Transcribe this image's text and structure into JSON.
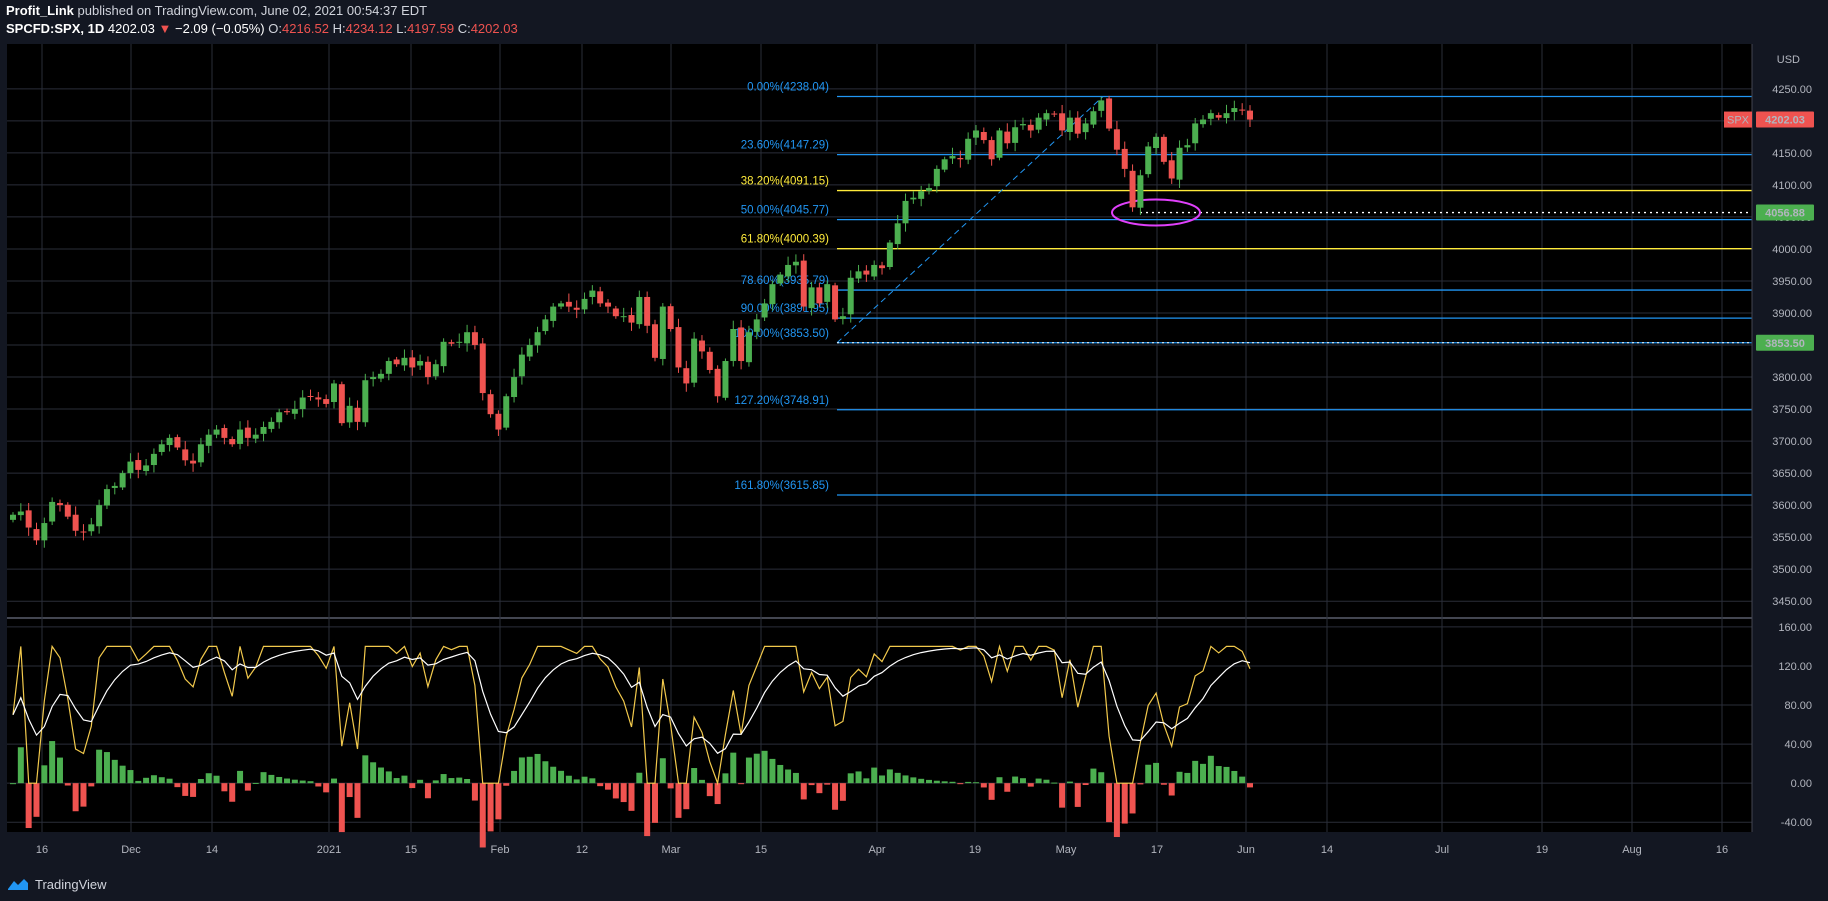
{
  "header": {
    "author": "Profit_Link",
    "published_text": "published on TradingView.com, June 02, 2021 00:54:37 EDT",
    "symbol": "SPCFD:SPX, 1D",
    "last": "4202.03",
    "change_arrow": "▼",
    "change": "−2.09 (−0.05%)",
    "o_label": "O:",
    "o_value": "4216.52",
    "h_label": "H:",
    "h_value": "4234.12",
    "l_label": "L:",
    "l_value": "4197.59",
    "c_label": "C:",
    "c_value": "4202.03"
  },
  "colors": {
    "background": "#131722",
    "grid": "#2a2e39",
    "up": "#26a69a",
    "up_candle": "#4caf50",
    "down": "#ef5350",
    "fib_blue": "#2196f3",
    "fib_yellow": "#ffeb3b",
    "osc_main": "#f2c94c",
    "osc_signal": "#ffffff",
    "ellipse": "#e040fb"
  },
  "footer": {
    "brand": "TradingView",
    "logo_icon": "tradingview-logo-icon"
  },
  "chart_data": {
    "type": "candlestick",
    "symbol": "SPX",
    "currency": "USD",
    "price_axis": {
      "ticks": [
        4250,
        4200,
        4150,
        4100,
        4050,
        4000,
        3950,
        3900,
        3850,
        3800,
        3750,
        3700,
        3650,
        3600,
        3550,
        3500,
        3450
      ],
      "ylim": [
        3430,
        4320
      ]
    },
    "price_labels": [
      {
        "text": "SPX",
        "value": 4202.03,
        "color": "#ef5350"
      },
      {
        "text": "4202.03",
        "value": 4202.03,
        "color": "#ef5350"
      },
      {
        "text": "4056.88",
        "value": 4056.88,
        "color": "#4caf50"
      },
      {
        "text": "3853.50",
        "value": 3853.5,
        "color": "#4caf50"
      }
    ],
    "time_axis": [
      "16",
      "Dec",
      "14",
      "2021",
      "15",
      "Feb",
      "12",
      "Mar",
      "15",
      "Apr",
      "19",
      "May",
      "17",
      "Jun",
      "14",
      "Jul",
      "19",
      "Aug",
      "16"
    ],
    "fib_levels": [
      {
        "label": "0.00%(4238.04)",
        "value": 4238.04,
        "color": "#2196f3"
      },
      {
        "label": "23.60%(4147.29)",
        "value": 4147.29,
        "color": "#2196f3"
      },
      {
        "label": "38.20%(4091.15)",
        "value": 4091.15,
        "color": "#ffeb3b"
      },
      {
        "label": "50.00%(4045.77)",
        "value": 4045.77,
        "color": "#2196f3"
      },
      {
        "label": "61.80%(4000.39)",
        "value": 4000.39,
        "color": "#ffeb3b"
      },
      {
        "label": "78.60%(3935.79)",
        "value": 3935.79,
        "color": "#2196f3"
      },
      {
        "label": "90.00%(3891.95)",
        "value": 3891.95,
        "color": "#2196f3"
      },
      {
        "label": "100.00%(3853.50)",
        "value": 3853.5,
        "color": "#2196f3"
      },
      {
        "label": "127.20%(3748.91)",
        "value": 3748.91,
        "color": "#2196f3"
      },
      {
        "label": "161.80%(3615.85)",
        "value": 3615.85,
        "color": "#2196f3"
      }
    ],
    "closes": [
      3585,
      3590,
      3565,
      3545,
      3572,
      3605,
      3600,
      3582,
      3560,
      3558,
      3570,
      3600,
      3625,
      3630,
      3650,
      3668,
      3655,
      3662,
      3680,
      3695,
      3705,
      3690,
      3670,
      3665,
      3695,
      3710,
      3718,
      3705,
      3695,
      3718,
      3705,
      3710,
      3722,
      3730,
      3745,
      3745,
      3750,
      3768,
      3770,
      3765,
      3758,
      3790,
      3728,
      3755,
      3730,
      3795,
      3800,
      3805,
      3825,
      3820,
      3830,
      3815,
      3825,
      3800,
      3820,
      3855,
      3852,
      3855,
      3870,
      3850,
      3775,
      3742,
      3718,
      3770,
      3800,
      3835,
      3850,
      3870,
      3890,
      3910,
      3915,
      3910,
      3905,
      3922,
      3935,
      3915,
      3910,
      3895,
      3895,
      3885,
      3925,
      3880,
      3830,
      3910,
      3875,
      3815,
      3790,
      3860,
      3840,
      3811,
      3770,
      3825,
      3875,
      3825,
      3870,
      3890,
      3915,
      3945,
      3960,
      3975,
      3980,
      3910,
      3940,
      3915,
      3945,
      3890,
      3895,
      3955,
      3965,
      3960,
      3975,
      3970,
      4010,
      4040,
      4075,
      4080,
      4090,
      4095,
      4125,
      4140,
      4145,
      4140,
      4172,
      4185,
      4170,
      4140,
      4185,
      4165,
      4190,
      4195,
      4185,
      4205,
      4212,
      4210,
      4185,
      4205,
      4180,
      4196,
      4215,
      4232,
      4188,
      4155,
      4125,
      4065,
      4115,
      4160,
      4175,
      4136,
      4110,
      4158,
      4162,
      4196,
      4202,
      4212,
      4205,
      4212,
      4220,
      4216,
      4202
    ],
    "oscillator": {
      "axis_ticks": [
        160.0,
        120.0,
        80.0,
        40.0,
        0.0,
        -40.0
      ],
      "ylim": [
        -50,
        165
      ]
    }
  }
}
